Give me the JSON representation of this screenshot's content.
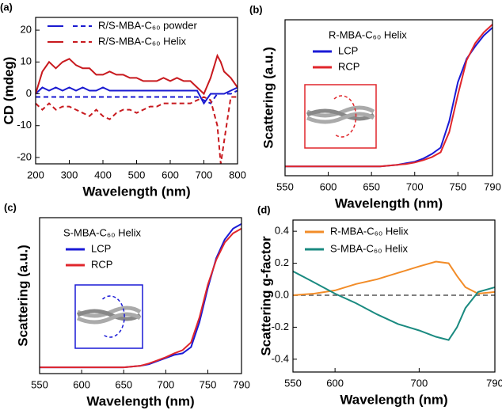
{
  "chart_data": [
    {
      "type": "line",
      "title": "(a)",
      "x_label": "Wavelength (nm)",
      "y_label": "CD (mdeg)",
      "x": [
        200,
        220,
        240,
        260,
        280,
        300,
        320,
        340,
        360,
        380,
        400,
        420,
        440,
        460,
        480,
        500,
        520,
        540,
        560,
        580,
        600,
        620,
        640,
        660,
        680,
        700,
        720,
        740,
        750,
        760,
        780,
        800
      ],
      "xlim": [
        200,
        800
      ],
      "xticks": [
        200,
        300,
        400,
        500,
        600,
        700,
        800
      ],
      "ylim": [
        -22,
        24
      ],
      "yticks": [
        -20,
        -10,
        0,
        10,
        20
      ],
      "series": [
        {
          "name": "R/S-MBA-C₆₀ powder",
          "color": "#1a1ad0",
          "lines": [
            {
              "dash": false,
              "values": [
                0,
                2,
                1,
                2,
                1,
                2,
                1,
                2,
                1,
                1,
                2,
                1,
                1,
                1,
                1,
                1,
                1,
                1,
                1,
                1,
                1,
                1,
                1,
                1,
                1,
                -3,
                0,
                0,
                0,
                0,
                1,
                2
              ]
            },
            {
              "dash": true,
              "values": [
                -1,
                -1,
                -1,
                -1,
                -1,
                -1,
                -1,
                -1,
                -1,
                -1,
                -1,
                -1,
                -1,
                -1,
                -1,
                -1,
                -1,
                -1,
                -1,
                -1,
                -1,
                -1,
                -1,
                -1,
                -1,
                -2,
                -3,
                0,
                0,
                0,
                0,
                1
              ]
            }
          ]
        },
        {
          "name": "R/S-MBA-C₆₀ Helix",
          "color": "#c8191e",
          "lines": [
            {
              "dash": false,
              "values": [
                0,
                7,
                10,
                8,
                10,
                11,
                9,
                8,
                8,
                6,
                6,
                7,
                6,
                6,
                5,
                5,
                4,
                4,
                4,
                5,
                4,
                5,
                4,
                4,
                2,
                0,
                5,
                12,
                10,
                7,
                5,
                2
              ]
            },
            {
              "dash": true,
              "values": [
                -3,
                -5,
                -3,
                -5,
                -4,
                -4,
                -5,
                -6,
                -7,
                -5,
                -7,
                -8,
                -6,
                -5,
                -5,
                -6,
                -5,
                -4,
                -4,
                -3,
                -3,
                -3,
                -3,
                -3,
                -2,
                -1,
                -2,
                -10,
                -22,
                -15,
                -1,
                -1
              ]
            }
          ]
        }
      ]
    },
    {
      "type": "line",
      "title": "(b)",
      "x_label": "Wavelength (nm)",
      "y_label": "Scattering (a.u.)",
      "legend_title": "R-MBA-C₆₀ Helix",
      "inset_color": "#e0262b",
      "x": [
        550,
        575,
        600,
        625,
        650,
        660,
        670,
        680,
        690,
        700,
        710,
        720,
        730,
        740,
        750,
        760,
        770,
        780,
        790
      ],
      "xlim": [
        550,
        790
      ],
      "xticks": [
        550,
        600,
        650,
        700,
        750,
        790
      ],
      "ylim": [
        0,
        1
      ],
      "series": [
        {
          "name": "LCP",
          "color": "#1a1ad6",
          "values": [
            0.06,
            0.06,
            0.06,
            0.06,
            0.06,
            0.06,
            0.065,
            0.07,
            0.08,
            0.09,
            0.11,
            0.14,
            0.18,
            0.35,
            0.6,
            0.75,
            0.83,
            0.9,
            0.95
          ]
        },
        {
          "name": "RCP",
          "color": "#e0262b",
          "values": [
            0.06,
            0.06,
            0.06,
            0.06,
            0.06,
            0.06,
            0.065,
            0.07,
            0.075,
            0.085,
            0.1,
            0.12,
            0.15,
            0.28,
            0.52,
            0.74,
            0.85,
            0.92,
            0.97
          ]
        }
      ]
    },
    {
      "type": "line",
      "title": "(c)",
      "x_label": "Wavelength (nm)",
      "y_label": "Scattering (a.u.)",
      "legend_title": "S-MBA-C₆₀ Helix",
      "inset_color": "#1a1ad6",
      "x": [
        550,
        575,
        600,
        625,
        650,
        660,
        670,
        680,
        690,
        700,
        710,
        720,
        730,
        740,
        750,
        760,
        770,
        780,
        790
      ],
      "xlim": [
        550,
        790
      ],
      "xticks": [
        550,
        600,
        650,
        700,
        750,
        790
      ],
      "ylim": [
        0,
        1
      ],
      "series": [
        {
          "name": "LCP",
          "color": "#1a1ad6",
          "values": [
            0.04,
            0.04,
            0.04,
            0.04,
            0.04,
            0.045,
            0.05,
            0.06,
            0.08,
            0.1,
            0.12,
            0.13,
            0.17,
            0.33,
            0.55,
            0.74,
            0.86,
            0.93,
            0.96
          ]
        },
        {
          "name": "RCP",
          "color": "#e0262b",
          "values": [
            0.04,
            0.04,
            0.04,
            0.04,
            0.04,
            0.045,
            0.05,
            0.065,
            0.085,
            0.105,
            0.13,
            0.15,
            0.2,
            0.36,
            0.57,
            0.73,
            0.84,
            0.9,
            0.93
          ]
        }
      ]
    },
    {
      "type": "line",
      "title": "(d)",
      "x_label": "Wavelength (nm)",
      "y_label": "Scattering g-factor",
      "x": [
        550,
        575,
        600,
        625,
        650,
        675,
        700,
        720,
        735,
        745,
        755,
        770,
        790
      ],
      "xlim": [
        550,
        790
      ],
      "xticks": [
        550,
        600,
        700,
        790
      ],
      "ylim": [
        -0.48,
        0.47
      ],
      "yticks": [
        -0.4,
        -0.2,
        {
          "value": 0,
          "label": "0.0"
        },
        0.2,
        0.4
      ],
      "hline": 0,
      "hline_color": "#808080",
      "series": [
        {
          "name": "R-MBA-C₆₀ Helix",
          "color": "#f28c28",
          "values": [
            0,
            0.01,
            0.03,
            0.07,
            0.1,
            0.14,
            0.18,
            0.21,
            0.2,
            0.12,
            0.05,
            0.01,
            0.02
          ]
        },
        {
          "name": "S-MBA-C₆₀ Helix",
          "color": "#1a8a80",
          "values": [
            0.15,
            0.08,
            0.01,
            -0.05,
            -0.12,
            -0.18,
            -0.22,
            -0.26,
            -0.28,
            -0.2,
            -0.08,
            0.02,
            0.05
          ]
        }
      ]
    }
  ]
}
